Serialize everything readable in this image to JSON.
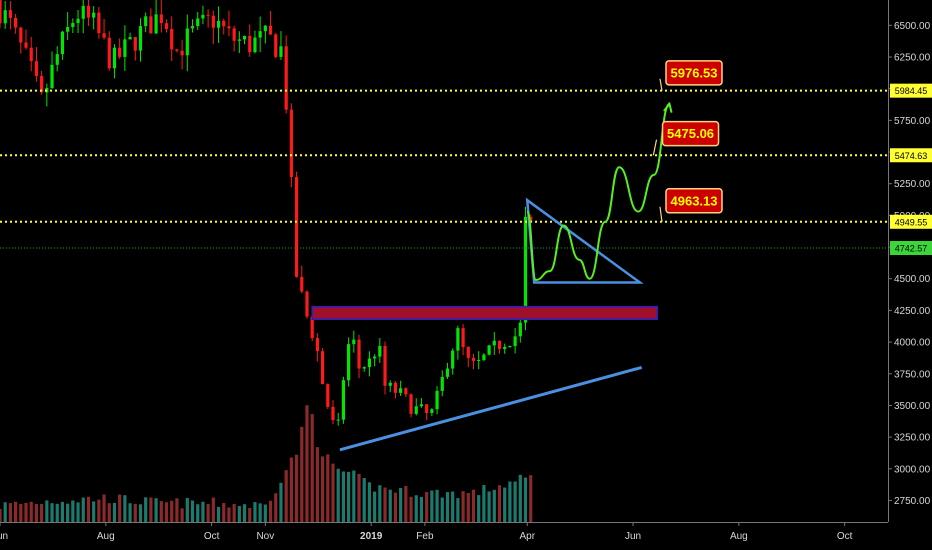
{
  "chart_data": {
    "type": "candlestick",
    "title": "",
    "y_axis": {
      "min": 2580,
      "max": 6700,
      "ticks": [
        2750,
        3000,
        3250,
        3500,
        3750,
        4000,
        4250,
        4500,
        4750,
        5000,
        5250,
        5500,
        5750,
        6000,
        6250,
        6500
      ],
      "tick_labels": [
        "2750.00",
        "3000.00",
        "3250.00",
        "3500.00",
        "3750.00",
        "4000.00",
        "4250.00",
        "4500.00",
        "4750.00",
        "5000.00",
        "5250.00",
        "5500.00",
        "5750.00",
        "6000.00",
        "6250.00",
        "6500.00"
      ],
      "side": "right"
    },
    "x_axis": {
      "start": "2018-06-01",
      "end": "2019-10-26",
      "ticks": [
        {
          "date": "2018-06-01",
          "label": "Jun",
          "bold": false
        },
        {
          "date": "2018-08-01",
          "label": "Aug",
          "bold": false
        },
        {
          "date": "2018-10-01",
          "label": "Oct",
          "bold": false
        },
        {
          "date": "2018-11-01",
          "label": "Nov",
          "bold": false
        },
        {
          "date": "2019-01-01",
          "label": "2019",
          "bold": true
        },
        {
          "date": "2019-02-01",
          "label": "Feb",
          "bold": false
        },
        {
          "date": "2019-04-01",
          "label": "Apr",
          "bold": false
        },
        {
          "date": "2019-06-01",
          "label": "Jun",
          "bold": false
        },
        {
          "date": "2019-08-01",
          "label": "Aug",
          "bold": false
        },
        {
          "date": "2019-10-01",
          "label": "Oct",
          "bold": false
        }
      ]
    },
    "colors": {
      "up": "#00e600",
      "down": "#ff1a1a",
      "vol_up": "#1d7a6e",
      "vol_down": "#8b2a2a",
      "level_line": "#ffff33",
      "current_line": "#00aa00",
      "trendline": "#4a90e2",
      "zone_fill": "#a0102a",
      "zone_border": "#2222cc",
      "projection": "#55ee22"
    },
    "price_anchors": [
      [
        "2018-06-01",
        6700
      ],
      [
        "2018-06-10",
        6500
      ],
      [
        "2018-06-20",
        6200
      ],
      [
        "2018-06-28",
        5900
      ],
      [
        "2018-07-08",
        6300
      ],
      [
        "2018-07-18",
        6600
      ],
      [
        "2018-07-28",
        6500
      ],
      [
        "2018-08-08",
        6200
      ],
      [
        "2018-08-18",
        6350
      ],
      [
        "2018-08-28",
        6500
      ],
      [
        "2018-09-06",
        6600
      ],
      [
        "2018-09-14",
        6300
      ],
      [
        "2018-09-24",
        6450
      ],
      [
        "2018-10-05",
        6550
      ],
      [
        "2018-10-15",
        6400
      ],
      [
        "2018-10-25",
        6350
      ],
      [
        "2018-11-05",
        6400
      ],
      [
        "2018-11-14",
        6300
      ],
      [
        "2018-11-18",
        5500
      ],
      [
        "2018-11-21",
        4600
      ],
      [
        "2018-11-24",
        4400
      ],
      [
        "2018-11-28",
        4200
      ],
      [
        "2018-12-03",
        4000
      ],
      [
        "2018-12-08",
        3600
      ],
      [
        "2018-12-14",
        3300
      ],
      [
        "2018-12-17",
        3350
      ],
      [
        "2018-12-20",
        3900
      ],
      [
        "2018-12-24",
        4050
      ],
      [
        "2018-12-28",
        3800
      ],
      [
        "2019-01-04",
        3850
      ],
      [
        "2019-01-08",
        4000
      ],
      [
        "2019-01-12",
        3650
      ],
      [
        "2019-01-20",
        3600
      ],
      [
        "2019-01-28",
        3480
      ],
      [
        "2019-02-03",
        3450
      ],
      [
        "2019-02-07",
        3400
      ],
      [
        "2019-02-12",
        3600
      ],
      [
        "2019-02-18",
        3900
      ],
      [
        "2019-02-24",
        4100
      ],
      [
        "2019-02-27",
        3850
      ],
      [
        "2019-03-05",
        3800
      ],
      [
        "2019-03-12",
        3900
      ],
      [
        "2019-03-20",
        4000
      ],
      [
        "2019-03-28",
        4050
      ],
      [
        "2019-04-01",
        4150
      ],
      [
        "2019-04-02",
        4900
      ],
      [
        "2019-04-03",
        4950
      ]
    ],
    "volume_anchors": [
      [
        "2018-06-01",
        2700
      ],
      [
        "2018-07-01",
        2740
      ],
      [
        "2018-08-01",
        2760
      ],
      [
        "2018-09-01",
        2720
      ],
      [
        "2018-10-01",
        2720
      ],
      [
        "2018-11-01",
        2700
      ],
      [
        "2018-11-20",
        3150
      ],
      [
        "2018-11-26",
        3550
      ],
      [
        "2018-12-01",
        3200
      ],
      [
        "2018-12-10",
        3000
      ],
      [
        "2018-12-20",
        2950
      ],
      [
        "2019-01-01",
        2850
      ],
      [
        "2019-02-01",
        2800
      ],
      [
        "2019-03-01",
        2800
      ],
      [
        "2019-04-02",
        2920
      ]
    ],
    "levels": [
      {
        "price": 5984.45,
        "label": "5984.45"
      },
      {
        "price": 5474.63,
        "label": "5474.63"
      },
      {
        "price": 4949.55,
        "label": "4949.55"
      }
    ],
    "current_price": {
      "price": 4742.57,
      "label": "4742.57"
    },
    "callouts": [
      {
        "label": "5976.53",
        "box_date": "2019-06-20",
        "box_price": 6220,
        "point_date": "2019-06-20",
        "point_price": 5984.45
      },
      {
        "label": "5475.06",
        "box_date": "2019-06-18",
        "box_price": 5740,
        "point_date": "2019-06-15",
        "point_price": 5474.63
      },
      {
        "label": "4963.13",
        "box_date": "2019-06-20",
        "box_price": 5210,
        "point_date": "2019-06-20",
        "point_price": 4949.55
      }
    ],
    "resistance_zone": {
      "start": "2018-11-28",
      "end": "2019-06-15",
      "top": 4280,
      "bottom": 4180
    },
    "support_trendline": {
      "from": [
        "2018-12-14",
        3150
      ],
      "to": [
        "2019-06-06",
        3800
      ]
    },
    "triangle": [
      [
        "2019-04-01",
        5120
      ],
      [
        "2019-06-05",
        4470
      ],
      [
        "2019-04-05",
        4470
      ]
    ],
    "projection_path": [
      [
        "2019-04-01",
        5030
      ],
      [
        "2019-04-06",
        4490
      ],
      [
        "2019-04-14",
        4560
      ],
      [
        "2019-04-22",
        4920
      ],
      [
        "2019-05-01",
        4650
      ],
      [
        "2019-05-07",
        4500
      ],
      [
        "2019-05-16",
        4950
      ],
      [
        "2019-05-24",
        5380
      ],
      [
        "2019-06-04",
        5030
      ],
      [
        "2019-06-13",
        5320
      ],
      [
        "2019-06-22",
        5880
      ]
    ]
  }
}
